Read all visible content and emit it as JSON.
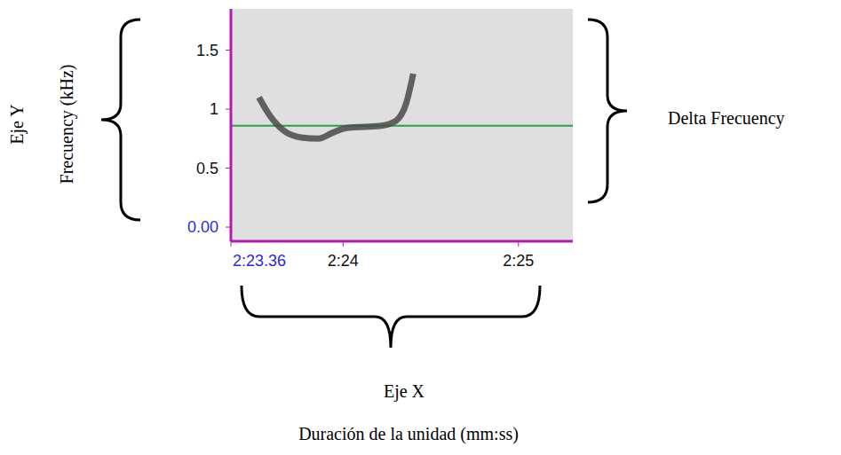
{
  "chart_data": {
    "type": "line",
    "y_label": "Frecuency (kHz)",
    "x_label": "Duración de la unidad (mm:ss)",
    "annotations": {
      "y_axis": "Eje Y",
      "x_axis": "Eje X",
      "delta": "Delta Frecuency"
    },
    "x": [
      143.52,
      143.58,
      143.66,
      143.76,
      143.86,
      143.94,
      144.02,
      144.12,
      144.22,
      144.3,
      144.36,
      144.4
    ],
    "series": [
      {
        "color": "#4a4a4a",
        "values": [
          1.1,
          0.95,
          0.82,
          0.76,
          0.75,
          0.8,
          0.84,
          0.85,
          0.86,
          0.9,
          1.05,
          1.3
        ]
      }
    ],
    "xlim": [
      143.36,
      145.31
    ],
    "xticks": [
      {
        "value": 143.36,
        "label": "2:23.36"
      },
      {
        "value": 144,
        "label": "2:24"
      },
      {
        "value": 145,
        "label": "2:25"
      }
    ],
    "ylim": [
      -0.12,
      1.85
    ],
    "yticks": [
      {
        "value": 0,
        "label": "0.00"
      },
      0.5,
      1,
      1.5
    ],
    "reference_lines": [
      {
        "y": 0.86,
        "color": "#2e9a4e"
      }
    ],
    "grid": false
  }
}
